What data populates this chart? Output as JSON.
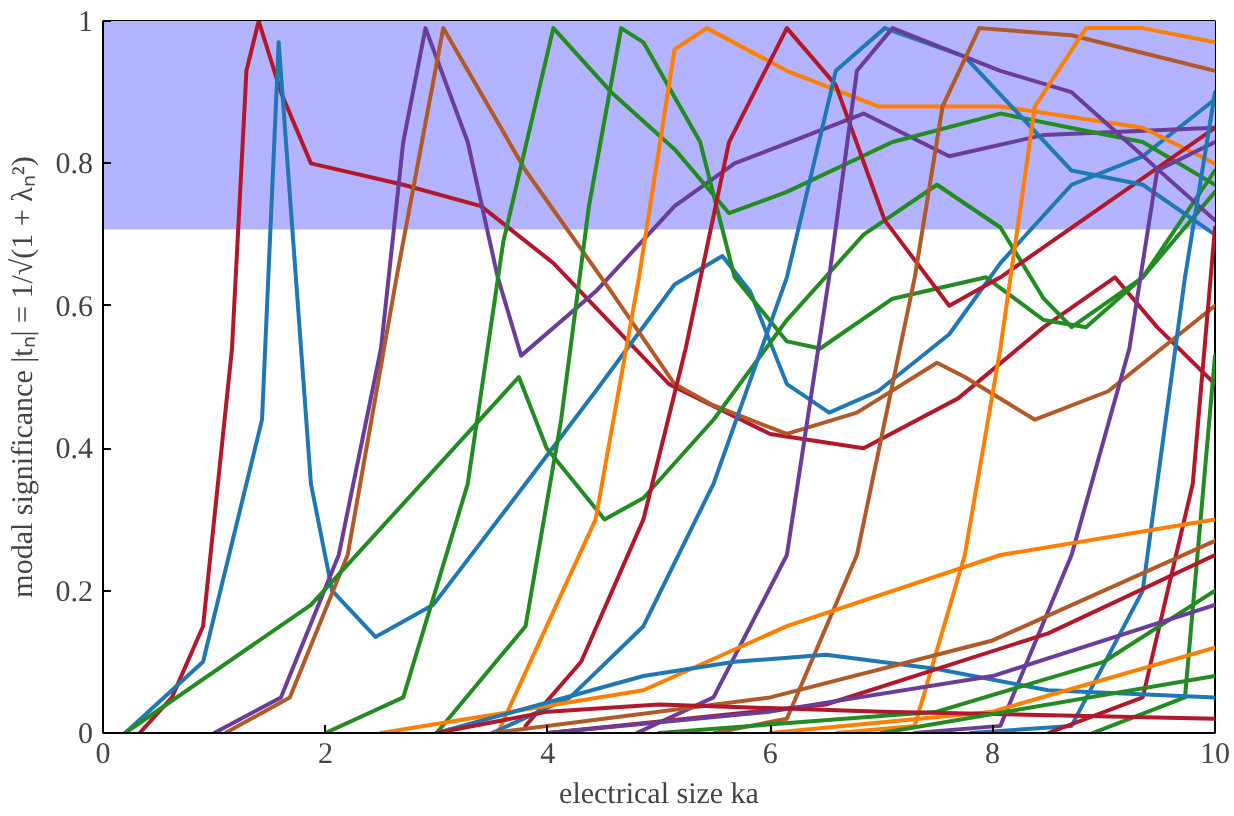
{
  "chart_data": {
    "type": "line",
    "xlabel": "electrical size ka",
    "ylabel": "modal significance |tₙ| = 1/√(1 + λₙ²)",
    "xlim": [
      0,
      10
    ],
    "ylim": [
      0,
      1
    ],
    "xticks": [
      0,
      2,
      4,
      6,
      8,
      10
    ],
    "yticks": [
      0,
      0.2,
      0.4,
      0.6,
      0.8,
      1
    ],
    "grid": false,
    "bands": [
      {
        "axis": "y",
        "from": 0.707,
        "to": 1,
        "color": "#b3b3ff"
      }
    ],
    "series": [
      {
        "color": "#b2182b",
        "x": [
          0.33,
          0.62,
          0.9,
          1.16,
          1.29,
          1.4,
          1.6,
          1.87,
          2.7,
          3.4,
          4.05,
          5.09,
          6.0,
          6.84,
          7.69,
          8.46,
          9.1,
          9.48,
          10
        ],
        "values": [
          0,
          0.05,
          0.15,
          0.54,
          0.93,
          1.0,
          0.9,
          0.8,
          0.77,
          0.74,
          0.66,
          0.49,
          0.42,
          0.4,
          0.47,
          0.57,
          0.64,
          0.57,
          0.49
        ]
      },
      {
        "color": "#1f78b4",
        "x": [
          0.2,
          0.9,
          1.43,
          1.58,
          1.87,
          2.06,
          2.45,
          2.97,
          3.8,
          4.43,
          5.14,
          5.57,
          5.82,
          6.15,
          6.53,
          6.97,
          7.61,
          8.07,
          8.71,
          9.35,
          10
        ],
        "values": [
          0,
          0.1,
          0.44,
          0.97,
          0.35,
          0.2,
          0.135,
          0.18,
          0.35,
          0.48,
          0.63,
          0.67,
          0.62,
          0.49,
          0.45,
          0.48,
          0.56,
          0.66,
          0.77,
          0.81,
          0.89
        ]
      },
      {
        "color": "#6a3d9a",
        "x": [
          1.0,
          1.6,
          2.12,
          2.5,
          2.7,
          2.9,
          3.28,
          3.55,
          3.76,
          4.43,
          5.14,
          5.68,
          6.84,
          7.61,
          8.46,
          10
        ],
        "values": [
          0,
          0.05,
          0.25,
          0.54,
          0.83,
          0.99,
          0.83,
          0.64,
          0.53,
          0.62,
          0.74,
          0.8,
          0.87,
          0.81,
          0.84,
          0.85
        ]
      },
      {
        "color": "#b15928",
        "x": [
          1.1,
          1.68,
          2.2,
          2.64,
          3.06,
          3.8,
          4.57,
          5.14,
          5.49,
          6.15,
          6.78,
          7.5,
          7.75,
          8.38,
          9.04,
          10
        ],
        "values": [
          0,
          0.05,
          0.25,
          0.64,
          0.99,
          0.79,
          0.62,
          0.49,
          0.46,
          0.42,
          0.45,
          0.52,
          0.5,
          0.44,
          0.48,
          0.6
        ]
      },
      {
        "color": "#228b22",
        "x": [
          0.2,
          1.87,
          3.74,
          3.99,
          4.51,
          4.86,
          5.49,
          6.15,
          6.84,
          7.5,
          8.07,
          8.46,
          8.71,
          9.35,
          10
        ],
        "values": [
          0,
          0.18,
          0.5,
          0.4,
          0.3,
          0.33,
          0.44,
          0.58,
          0.7,
          0.77,
          0.71,
          0.61,
          0.57,
          0.64,
          0.76
        ]
      },
      {
        "color": "#228b22",
        "x": [
          2.0,
          2.7,
          3.28,
          3.6,
          4.05,
          4.57,
          5.14,
          5.63,
          6.15,
          7.1,
          8.07,
          8.7,
          9.35,
          10
        ],
        "values": [
          0,
          0.05,
          0.35,
          0.69,
          0.99,
          0.9,
          0.82,
          0.73,
          0.76,
          0.83,
          0.87,
          0.85,
          0.83,
          0.77
        ]
      },
      {
        "color": "#228b22",
        "x": [
          3.0,
          3.8,
          4.12,
          4.37,
          4.66,
          4.86,
          5.37,
          5.68,
          6.15,
          6.45,
          7.1,
          7.94,
          8.46,
          8.84,
          9.35,
          10
        ],
        "values": [
          0,
          0.15,
          0.44,
          0.74,
          0.99,
          0.97,
          0.83,
          0.64,
          0.55,
          0.54,
          0.61,
          0.64,
          0.58,
          0.57,
          0.64,
          0.79
        ]
      },
      {
        "color": "#ff7f00",
        "x": [
          3.55,
          4.43,
          4.82,
          5.14,
          5.43,
          6.15,
          6.97,
          8.07,
          9.35,
          10
        ],
        "values": [
          0,
          0.3,
          0.64,
          0.96,
          0.99,
          0.93,
          0.88,
          0.88,
          0.85,
          0.8
        ]
      },
      {
        "color": "#b2182b",
        "x": [
          3.8,
          4.3,
          4.86,
          5.24,
          5.63,
          6.15,
          6.59,
          7.03,
          7.61,
          8.07,
          10
        ],
        "values": [
          0.01,
          0.1,
          0.3,
          0.54,
          0.83,
          0.99,
          0.91,
          0.72,
          0.6,
          0.64,
          0.85
        ]
      },
      {
        "color": "#1f78b4",
        "x": [
          3.5,
          4.2,
          4.86,
          5.49,
          6.15,
          6.59,
          7.03,
          7.75,
          8.71,
          9.35,
          10
        ],
        "values": [
          0,
          0.05,
          0.15,
          0.35,
          0.64,
          0.93,
          0.99,
          0.95,
          0.79,
          0.77,
          0.7
        ]
      },
      {
        "color": "#6a3d9a",
        "x": [
          4.8,
          5.49,
          6.15,
          6.53,
          6.78,
          7.1,
          8.07,
          8.71,
          10
        ],
        "values": [
          0,
          0.05,
          0.25,
          0.64,
          0.93,
          0.99,
          0.93,
          0.9,
          0.72
        ]
      },
      {
        "color": "#b15928",
        "x": [
          5.5,
          6.15,
          6.78,
          7.3,
          7.55,
          7.88,
          8.71,
          10
        ],
        "values": [
          0,
          0.02,
          0.25,
          0.64,
          0.88,
          0.99,
          0.98,
          0.93
        ]
      },
      {
        "color": "#ff7f00",
        "x": [
          6.6,
          7.3,
          7.75,
          8.07,
          8.38,
          8.84,
          9.35,
          10
        ],
        "values": [
          0,
          0.01,
          0.25,
          0.54,
          0.88,
          0.99,
          0.99,
          0.97
        ]
      },
      {
        "color": "#6a3d9a",
        "x": [
          7.3,
          8.07,
          8.71,
          9.23,
          9.48,
          10
        ],
        "values": [
          0,
          0.01,
          0.25,
          0.54,
          0.79,
          0.83
        ]
      },
      {
        "color": "#1f78b4",
        "x": [
          7.8,
          8.71,
          9.35,
          9.73,
          10
        ],
        "values": [
          0,
          0.01,
          0.2,
          0.64,
          0.9
        ]
      },
      {
        "color": "#b2182b",
        "x": [
          8.5,
          9.35,
          9.8,
          10
        ],
        "values": [
          0,
          0.05,
          0.35,
          0.71
        ]
      },
      {
        "color": "#228b22",
        "x": [
          8.9,
          9.73,
          10
        ],
        "values": [
          0,
          0.05,
          0.53
        ]
      },
      {
        "color": "#ff7f00",
        "x": [
          2.5,
          4.86,
          6.15,
          8.07,
          10
        ],
        "values": [
          0,
          0.06,
          0.15,
          0.25,
          0.3
        ]
      },
      {
        "color": "#1f78b4",
        "x": [
          3.0,
          4.86,
          5.68,
          6.5,
          7.5,
          8.5,
          10
        ],
        "values": [
          0,
          0.08,
          0.1,
          0.11,
          0.09,
          0.06,
          0.05
        ]
      },
      {
        "color": "#b15928",
        "x": [
          3.5,
          6,
          8,
          10
        ],
        "values": [
          0,
          0.05,
          0.13,
          0.27
        ]
      },
      {
        "color": "#b2182b",
        "x": [
          4,
          6.5,
          8.5,
          10
        ],
        "values": [
          0,
          0.04,
          0.14,
          0.25
        ]
      },
      {
        "color": "#228b22",
        "x": [
          5,
          7.5,
          9,
          10
        ],
        "values": [
          0,
          0.03,
          0.1,
          0.2
        ]
      },
      {
        "color": "#6a3d9a",
        "x": [
          4,
          6,
          8,
          10
        ],
        "values": [
          0,
          0.03,
          0.08,
          0.18
        ]
      },
      {
        "color": "#ff7f00",
        "x": [
          6,
          8,
          10
        ],
        "values": [
          0,
          0.03,
          0.12
        ]
      },
      {
        "color": "#b2182b",
        "x": [
          3,
          4,
          5,
          7,
          10
        ],
        "values": [
          0,
          0.03,
          0.04,
          0.03,
          0.02
        ]
      },
      {
        "color": "#228b22",
        "x": [
          7,
          10
        ],
        "values": [
          0,
          0.08
        ]
      }
    ]
  }
}
